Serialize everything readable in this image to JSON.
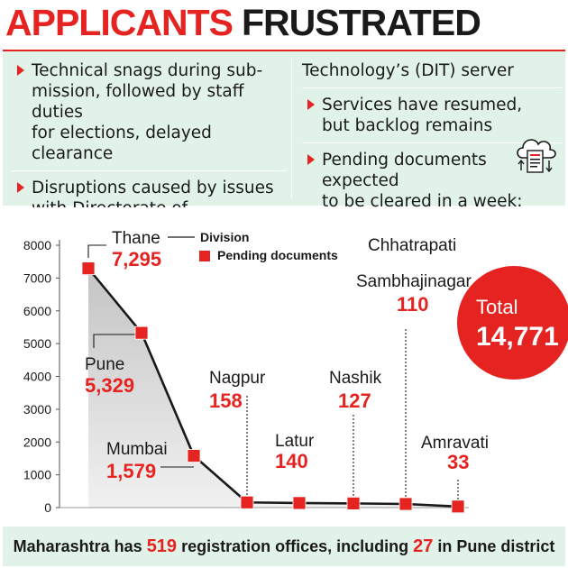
{
  "headline": {
    "part1": "APPLICANTS",
    "part2": "FRUSTRATED"
  },
  "bullets_left": [
    "Technical snags during sub-mission, followed by staff duties for elections, delayed clearance",
    "Disruptions caused by issues with Directorate of Information"
  ],
  "bullets_left_lines": [
    [
      "Technical snags during sub-",
      "mission, followed by staff duties",
      "for elections, delayed clearance"
    ],
    [
      "Disruptions caused by issues",
      "with Directorate of Information"
    ]
  ],
  "right_lead": "Technology’s (DIT) server",
  "bullets_right_lines": [
    [
      "Services have resumed,",
      "but backlog remains"
    ],
    [
      "Pending documents expected",
      "to be cleared in a week: Official"
    ]
  ],
  "icon": "cloud-document-icon",
  "colors": {
    "accent": "#e52421",
    "panel": "#e1f2e9",
    "area": "#cfcfcf"
  },
  "total": {
    "label": "Total",
    "value": "14,771"
  },
  "legend": {
    "division": "Division",
    "pending": "Pending documents"
  },
  "chart_data": {
    "type": "line",
    "categories": [
      "Thane",
      "Pune",
      "Mumbai",
      "Nagpur",
      "Latur",
      "Nashik",
      "Chhatrapati Sambhajinagar",
      "Amravati"
    ],
    "values": [
      7295,
      5329,
      1579,
      158,
      140,
      127,
      110,
      33
    ],
    "value_labels": [
      "7,295",
      "5,329",
      "1,579",
      "158",
      "140",
      "127",
      "110",
      "33"
    ],
    "ylim": [
      0,
      8000
    ],
    "yticks": [
      0,
      1000,
      2000,
      3000,
      4000,
      5000,
      6000,
      7000,
      8000
    ],
    "grid": false,
    "series": [
      {
        "name": "Pending documents",
        "values": [
          7295,
          5329,
          1579,
          158,
          140,
          127,
          110,
          33
        ]
      }
    ]
  },
  "footer": {
    "pre": "Maharashtra has ",
    "offices": "519",
    "mid": " registration offices, including ",
    "pune": "27",
    "post": " in Pune district"
  }
}
